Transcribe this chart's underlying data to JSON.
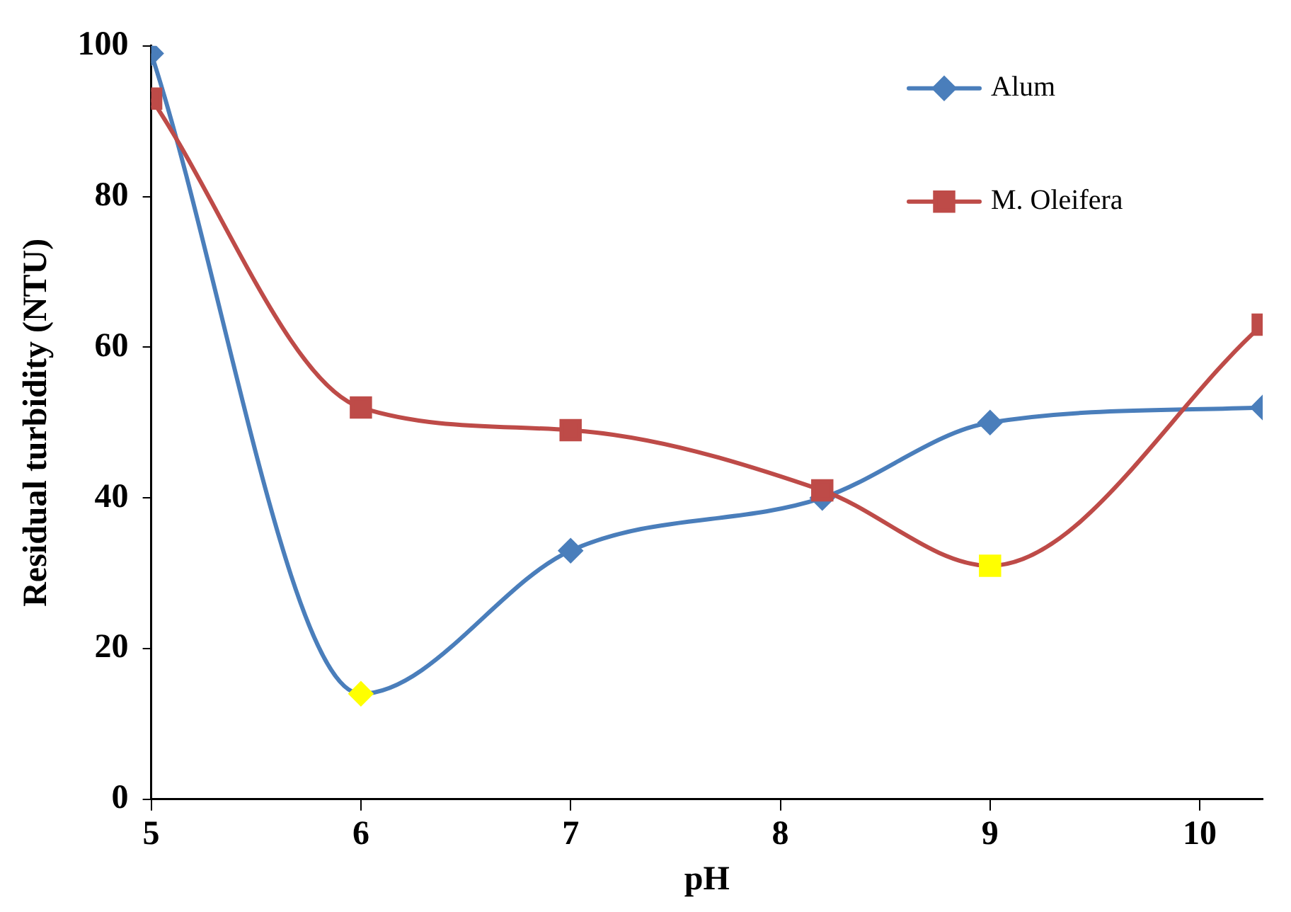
{
  "chart_data": {
    "type": "line",
    "xlabel": "pH",
    "ylabel": "Residual turbidity (NTU)",
    "xlim": [
      5,
      10.3
    ],
    "xticks": [
      5,
      6,
      7,
      8,
      9,
      10
    ],
    "ylim": [
      0,
      100
    ],
    "yticks": [
      0,
      20,
      40,
      60,
      80,
      100
    ],
    "grid": false,
    "legend": "top right",
    "series": [
      {
        "name": "Alum",
        "color": "#4a7ebb",
        "marker": "diamond",
        "x": [
          5,
          6,
          7,
          8.2,
          9,
          10.3
        ],
        "values": [
          99,
          14,
          33,
          40,
          50,
          52
        ],
        "colors": [
          "#4a7ebb",
          "#ffff00",
          "#4a7ebb",
          "#4a7ebb",
          "#4a7ebb",
          "#4a7ebb"
        ]
      },
      {
        "name": "M. Oleifera",
        "color": "#be4b48",
        "marker": "square",
        "x": [
          5,
          6,
          7,
          8.2,
          9,
          10.3
        ],
        "values": [
          93,
          52,
          49,
          41,
          31,
          63
        ],
        "colors": [
          "#be4b48",
          "#be4b48",
          "#be4b48",
          "#be4b48",
          "#ffff00",
          "#be4b48"
        ]
      }
    ]
  }
}
